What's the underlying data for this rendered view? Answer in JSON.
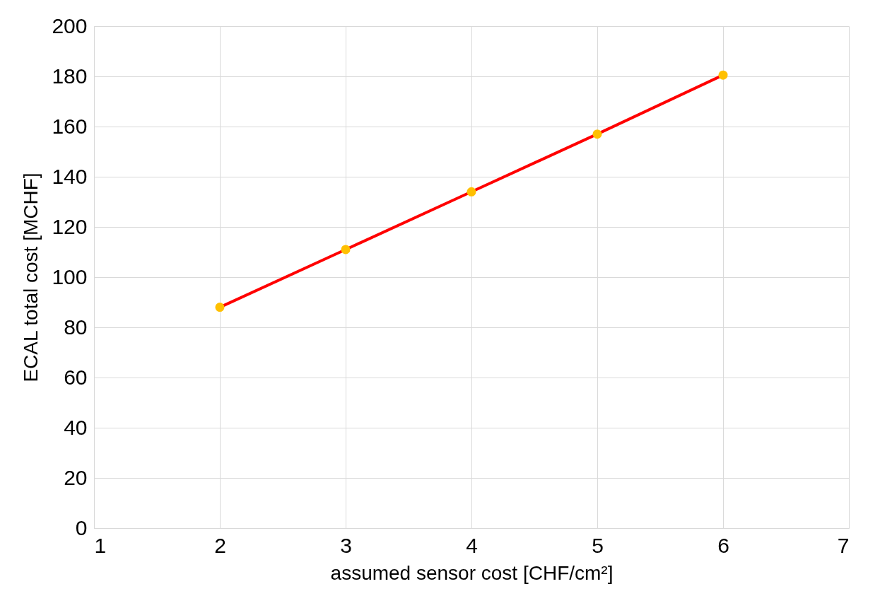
{
  "chart_data": {
    "type": "line",
    "xlabel": "assumed sensor cost [CHF/cm²]",
    "ylabel": "ECAL total cost [MCHF]",
    "x": [
      2,
      3,
      4,
      5,
      6
    ],
    "series": [
      {
        "color": "#ff0000",
        "values": [
          88,
          111,
          134,
          157,
          180.5
        ]
      },
      {
        "type": "scatter",
        "color": "#ffc000",
        "values": [
          88,
          111,
          134,
          157,
          180.5
        ]
      }
    ],
    "xlim": [
      1,
      7
    ],
    "xticks": [
      1,
      2,
      3,
      4,
      5,
      6,
      7
    ],
    "ylim": [
      0,
      200
    ],
    "yticks": [
      0,
      20,
      40,
      60,
      80,
      100,
      120,
      140,
      160,
      180,
      200
    ],
    "grid": true
  }
}
